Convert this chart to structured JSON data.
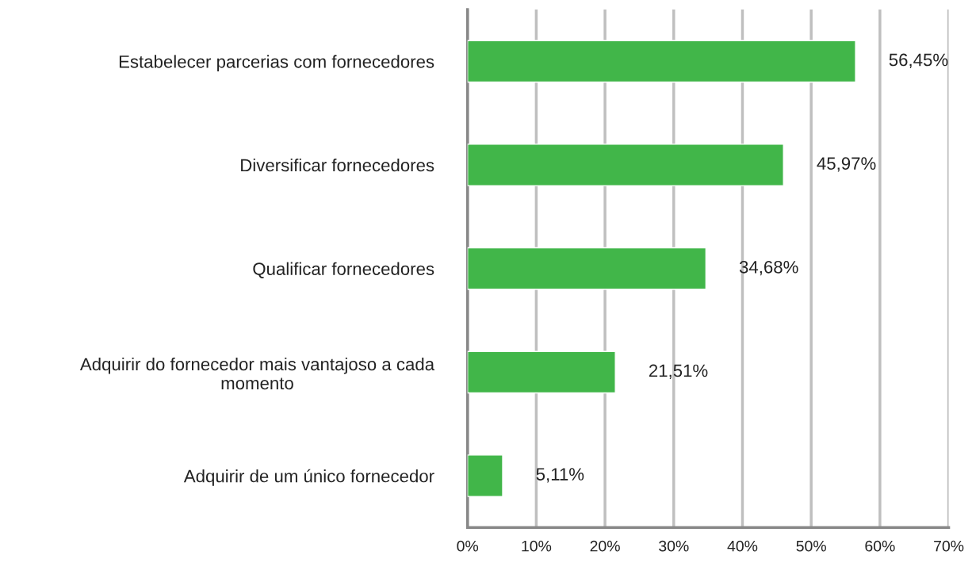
{
  "chart_data": {
    "type": "bar",
    "orientation": "horizontal",
    "categories": [
      "Estabelecer parcerias com fornecedores",
      "Diversificar fornecedores",
      "Qualificar fornecedores",
      "Adquirir do fornecedor mais vantajoso a cada momento",
      "Adquirir de um único fornecedor"
    ],
    "values": [
      56.45,
      45.97,
      34.68,
      21.51,
      5.11
    ],
    "value_labels": [
      "56,45%",
      "45,97%",
      "34,68%",
      "21,51%",
      "5,11%"
    ],
    "color": "#41b649",
    "xlim": [
      0,
      70
    ],
    "xticks": [
      {
        "value": 0,
        "label": "0%"
      },
      {
        "value": 10,
        "label": "10%"
      },
      {
        "value": 20,
        "label": "20%"
      },
      {
        "value": 30,
        "label": "30%"
      },
      {
        "value": 40,
        "label": "40%"
      },
      {
        "value": 50,
        "label": "50%"
      },
      {
        "value": 60,
        "label": "60%"
      },
      {
        "value": 70,
        "label": "70%"
      }
    ],
    "grid": "x",
    "legend": false
  }
}
